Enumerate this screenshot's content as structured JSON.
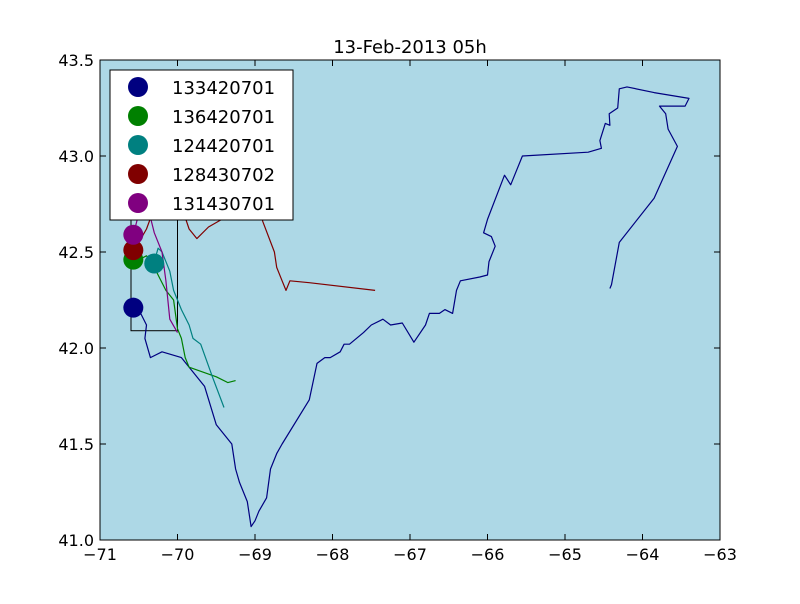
{
  "chart_data": {
    "type": "line",
    "title": "13-Feb-2013 05h",
    "xlabel": "",
    "ylabel": "",
    "xlim": [
      -71,
      -63
    ],
    "ylim": [
      41.0,
      43.5
    ],
    "xticks": [
      -71,
      -70,
      -69,
      -68,
      -67,
      -66,
      -65,
      -64,
      -63
    ],
    "xtick_labels": [
      "−71",
      "−70",
      "−69",
      "−68",
      "−67",
      "−66",
      "−65",
      "−64",
      "−63"
    ],
    "yticks": [
      41.0,
      41.5,
      42.0,
      42.5,
      43.0,
      43.5
    ],
    "ytick_labels": [
      "41.0",
      "41.5",
      "42.0",
      "42.5",
      "43.0",
      "43.5"
    ],
    "background_color": "#add8e6",
    "grid": false,
    "legend_position": "upper-left",
    "box": {
      "x": [
        -70.6,
        -70.0
      ],
      "y": [
        42.09,
        42.67
      ]
    },
    "series": [
      {
        "name": "133420701",
        "color": "#000080",
        "marker": [
          -70.57,
          42.21
        ],
        "points": [
          [
            -64.42,
            42.31
          ],
          [
            -64.4,
            42.33
          ],
          [
            -64.3,
            42.55
          ],
          [
            -63.85,
            42.78
          ],
          [
            -63.55,
            43.05
          ],
          [
            -63.67,
            43.14
          ],
          [
            -63.7,
            43.22
          ],
          [
            -63.78,
            43.26
          ],
          [
            -63.45,
            43.26
          ],
          [
            -63.4,
            43.3
          ],
          [
            -63.85,
            43.33
          ],
          [
            -64.2,
            43.36
          ],
          [
            -64.3,
            43.35
          ],
          [
            -64.32,
            43.25
          ],
          [
            -64.43,
            43.22
          ],
          [
            -64.42,
            43.16
          ],
          [
            -64.48,
            43.17
          ],
          [
            -64.55,
            43.08
          ],
          [
            -64.53,
            43.04
          ],
          [
            -64.7,
            43.02
          ],
          [
            -65.55,
            43.0
          ],
          [
            -65.7,
            42.85
          ],
          [
            -65.78,
            42.9
          ],
          [
            -66.0,
            42.67
          ],
          [
            -66.05,
            42.6
          ],
          [
            -65.95,
            42.58
          ],
          [
            -65.9,
            42.53
          ],
          [
            -65.98,
            42.45
          ],
          [
            -66.0,
            42.38
          ],
          [
            -66.1,
            42.37
          ],
          [
            -66.35,
            42.35
          ],
          [
            -66.4,
            42.3
          ],
          [
            -66.45,
            42.18
          ],
          [
            -66.55,
            42.2
          ],
          [
            -66.62,
            42.18
          ],
          [
            -66.75,
            42.18
          ],
          [
            -66.8,
            42.12
          ],
          [
            -66.95,
            42.03
          ],
          [
            -67.1,
            42.13
          ],
          [
            -67.25,
            42.12
          ],
          [
            -67.35,
            42.15
          ],
          [
            -67.5,
            42.12
          ],
          [
            -67.6,
            42.08
          ],
          [
            -67.78,
            42.02
          ],
          [
            -67.85,
            42.02
          ],
          [
            -67.9,
            41.98
          ],
          [
            -68.03,
            41.95
          ],
          [
            -68.1,
            41.95
          ],
          [
            -68.2,
            41.92
          ],
          [
            -68.3,
            41.73
          ],
          [
            -68.65,
            41.5
          ],
          [
            -68.72,
            41.45
          ],
          [
            -68.8,
            41.37
          ],
          [
            -68.85,
            41.22
          ],
          [
            -68.95,
            41.15
          ],
          [
            -69.0,
            41.1
          ],
          [
            -69.05,
            41.07
          ],
          [
            -69.1,
            41.2
          ],
          [
            -69.15,
            41.25
          ],
          [
            -69.2,
            41.3
          ],
          [
            -69.25,
            41.37
          ],
          [
            -69.3,
            41.5
          ],
          [
            -69.5,
            41.6
          ],
          [
            -69.65,
            41.8
          ],
          [
            -69.95,
            41.95
          ],
          [
            -70.2,
            41.98
          ],
          [
            -70.35,
            41.95
          ],
          [
            -70.42,
            42.05
          ],
          [
            -70.4,
            42.12
          ],
          [
            -70.5,
            42.2
          ],
          [
            -70.57,
            42.21
          ]
        ]
      },
      {
        "name": "136420701",
        "color": "#008000",
        "marker": [
          -70.57,
          42.46
        ],
        "points": [
          [
            -69.25,
            41.83
          ],
          [
            -69.35,
            41.82
          ],
          [
            -69.5,
            41.85
          ],
          [
            -69.85,
            41.9
          ],
          [
            -69.9,
            41.95
          ],
          [
            -69.95,
            42.05
          ],
          [
            -70.0,
            42.1
          ],
          [
            -70.05,
            42.25
          ],
          [
            -70.15,
            42.3
          ],
          [
            -70.25,
            42.38
          ],
          [
            -70.32,
            42.44
          ],
          [
            -70.4,
            42.48
          ],
          [
            -70.45,
            42.47
          ],
          [
            -70.5,
            42.46
          ],
          [
            -70.57,
            42.46
          ]
        ]
      },
      {
        "name": "124420701",
        "color": "#008080",
        "marker": [
          -70.3,
          42.44
        ],
        "points": [
          [
            -69.4,
            41.69
          ],
          [
            -69.55,
            41.85
          ],
          [
            -69.7,
            42.02
          ],
          [
            -69.8,
            42.05
          ],
          [
            -69.85,
            42.12
          ],
          [
            -69.95,
            42.2
          ],
          [
            -70.05,
            42.3
          ],
          [
            -70.1,
            42.4
          ],
          [
            -70.2,
            42.5
          ],
          [
            -70.25,
            42.52
          ],
          [
            -70.3,
            42.45
          ],
          [
            -70.3,
            42.44
          ]
        ]
      },
      {
        "name": "128430702",
        "color": "#800000",
        "marker": [
          -70.57,
          42.51
        ],
        "points": [
          [
            -67.45,
            42.3
          ],
          [
            -68.3,
            42.34
          ],
          [
            -68.55,
            42.35
          ],
          [
            -68.6,
            42.3
          ],
          [
            -68.65,
            42.35
          ],
          [
            -68.72,
            42.42
          ],
          [
            -68.75,
            42.5
          ],
          [
            -68.9,
            42.66
          ],
          [
            -68.95,
            42.75
          ],
          [
            -69.3,
            42.7
          ],
          [
            -69.6,
            42.63
          ],
          [
            -69.75,
            42.57
          ],
          [
            -69.85,
            42.62
          ],
          [
            -69.9,
            42.68
          ],
          [
            -70.2,
            42.7
          ],
          [
            -70.3,
            42.73
          ],
          [
            -70.4,
            42.62
          ],
          [
            -70.5,
            42.55
          ],
          [
            -70.57,
            42.51
          ]
        ]
      },
      {
        "name": "131430701",
        "color": "#800080",
        "marker": [
          -70.57,
          42.59
        ],
        "points": [
          [
            -70.0,
            42.08
          ],
          [
            -70.1,
            42.15
          ],
          [
            -70.15,
            42.35
          ],
          [
            -70.2,
            42.5
          ],
          [
            -70.3,
            42.6
          ],
          [
            -70.35,
            42.68
          ],
          [
            -70.4,
            42.72
          ],
          [
            -70.5,
            42.7
          ],
          [
            -70.57,
            42.59
          ]
        ]
      }
    ]
  }
}
